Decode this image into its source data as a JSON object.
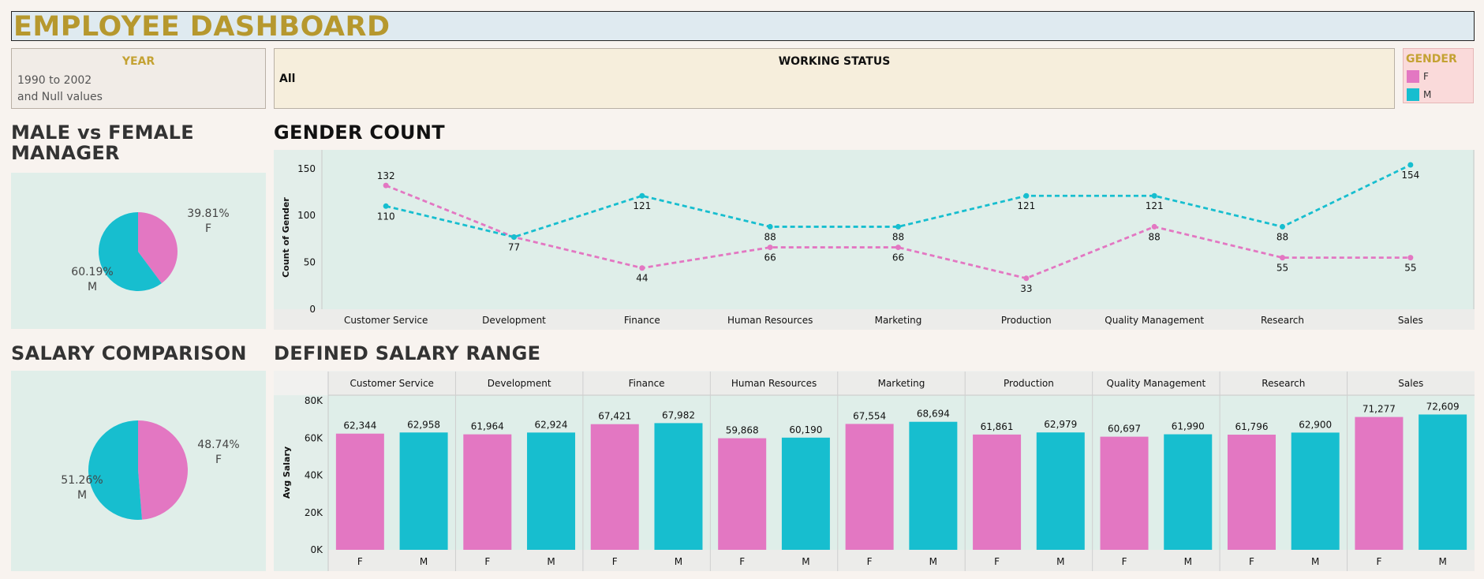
{
  "title": "EMPLOYEE DASHBOARD",
  "colors": {
    "female": "#e377c2",
    "male": "#17becf",
    "title_gold": "#b6982e",
    "panel_bg": "#e0eee9"
  },
  "filters": {
    "year": {
      "title": "YEAR",
      "line1": "1990 to 2002",
      "line2": "and Null values"
    },
    "working_status": {
      "title": "WORKING STATUS",
      "value": "All"
    },
    "gender_legend": {
      "title": "GENDER",
      "items": [
        {
          "label": "F"
        },
        {
          "label": "M"
        }
      ]
    }
  },
  "sections": {
    "manager": "MALE vs FEMALE MANAGER",
    "gender_count": "GENDER COUNT",
    "salary_comparison": "SALARY COMPARISON",
    "salary_range": "DEFINED SALARY RANGE"
  },
  "pie_manager": {
    "f_pct": "39.81%",
    "f_label": "F",
    "m_pct": "60.19%",
    "m_label": "M"
  },
  "pie_salary": {
    "f_pct": "48.74%",
    "f_label": "F",
    "m_pct": "51.26%",
    "m_label": "M"
  },
  "chart_data": [
    {
      "type": "pie",
      "slices": [
        {
          "label": "F",
          "value": 39.81
        },
        {
          "label": "M",
          "value": 60.19
        }
      ]
    },
    {
      "type": "line",
      "ylabel": "Count of Gender",
      "ylim": [
        0,
        170
      ],
      "yticks": [
        0,
        50,
        100,
        150
      ],
      "grid": false,
      "categories": [
        "Customer Service",
        "Development",
        "Finance",
        "Human Resources",
        "Marketing",
        "Production",
        "Quality Management",
        "Research",
        "Sales"
      ],
      "series": [
        {
          "name": "F",
          "values": [
            132,
            77,
            44,
            66,
            66,
            33,
            88,
            55,
            55
          ]
        },
        {
          "name": "M",
          "values": [
            110,
            77,
            121,
            88,
            88,
            121,
            121,
            88,
            154
          ]
        }
      ]
    },
    {
      "type": "pie",
      "slices": [
        {
          "label": "F",
          "value": 48.74
        },
        {
          "label": "M",
          "value": 51.26
        }
      ]
    },
    {
      "type": "bar",
      "ylabel": "Avg Salary",
      "ylim": [
        0,
        80000
      ],
      "yticks": [
        "0K",
        "20K",
        "40K",
        "60K",
        "80K"
      ],
      "grid": false,
      "categories": [
        "Customer Service",
        "Development",
        "Finance",
        "Human Resources",
        "Marketing",
        "Production",
        "Quality Management",
        "Research",
        "Sales"
      ],
      "subcategories": [
        "F",
        "M"
      ],
      "series": [
        {
          "name": "F",
          "values": [
            62344,
            61964,
            67421,
            59868,
            67554,
            61861,
            60697,
            61796,
            71277
          ],
          "labels": [
            "62,344",
            "61,964",
            "67,421",
            "59,868",
            "67,554",
            "61,861",
            "60,697",
            "61,796",
            "71,277"
          ]
        },
        {
          "name": "M",
          "values": [
            62958,
            62924,
            67982,
            60190,
            68694,
            62979,
            61990,
            62900,
            72609
          ],
          "labels": [
            "62,958",
            "62,924",
            "67,982",
            "60,190",
            "68,694",
            "62,979",
            "61,990",
            "62,900",
            "72,609"
          ]
        }
      ]
    }
  ]
}
